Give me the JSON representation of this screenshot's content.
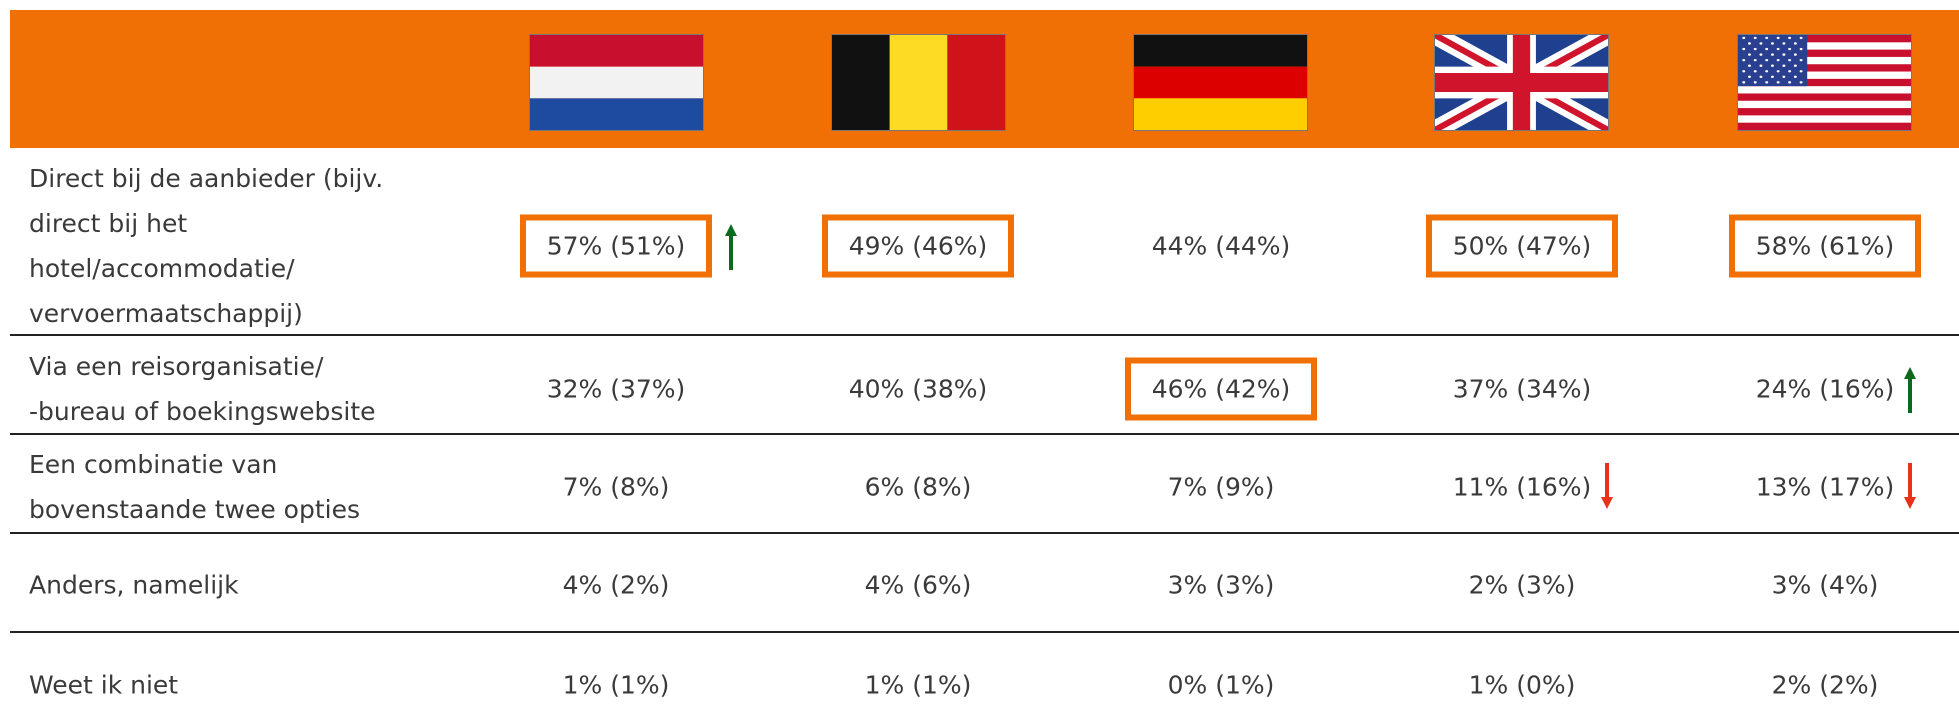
{
  "table": {
    "rows": [
      {
        "label": [
          "Direct bij de aanbieder (bijv.",
          "direct bij het",
          "hotel/accommodatie/",
          "vervoermaatschappij)"
        ],
        "cells": [
          "57% (51%)",
          "49% (46%)",
          "44% (44%)",
          "50% (47%)",
          "58% (61%)"
        ]
      },
      {
        "label": [
          "Via een reisorganisatie/",
          "-bureau of boekingswebsite"
        ],
        "cells": [
          "32% (37%)",
          "40% (38%)",
          "46% (42%)",
          "37% (34%)",
          "24% (16%)"
        ]
      },
      {
        "label": [
          "Een combinatie van",
          "bovenstaande twee opties"
        ],
        "cells": [
          "7% (8%)",
          "6% (8%)",
          "7% (9%)",
          "11% (16%)",
          "13% (17%)"
        ]
      },
      {
        "label": [
          "Anders, namelijk"
        ],
        "cells": [
          "4% (2%)",
          "4% (6%)",
          "3% (3%)",
          "2% (3%)",
          "3% (4%)"
        ]
      },
      {
        "label": [
          "Weet ik niet"
        ],
        "cells": [
          "1% (1%)",
          "1% (1%)",
          "0% (1%)",
          "1% (0%)",
          "2% (2%)"
        ]
      }
    ]
  }
}
